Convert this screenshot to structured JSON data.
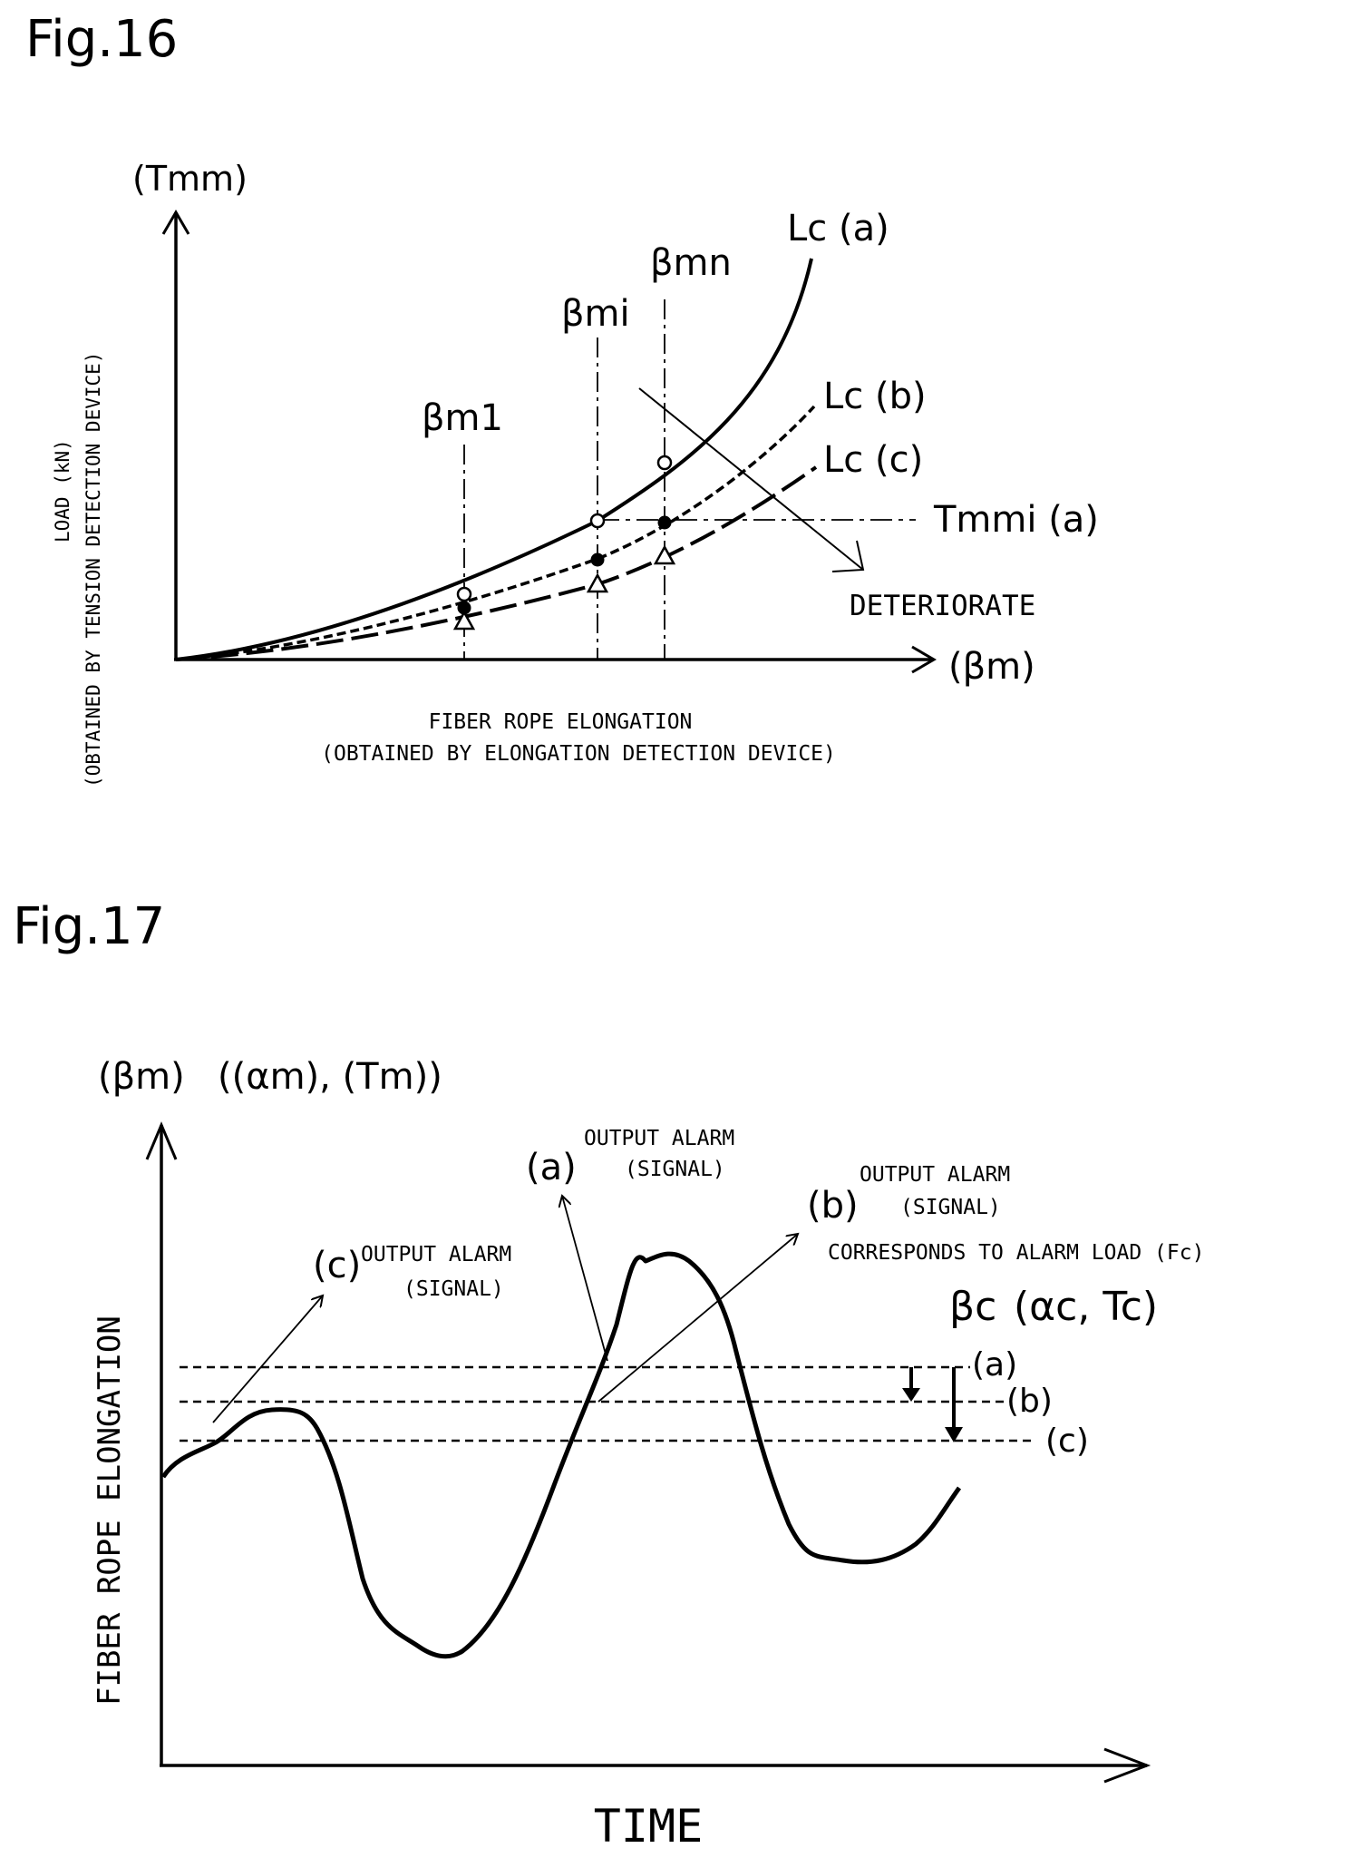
{
  "fig16": {
    "title": "Fig.16",
    "y_unit": "(Tmm)",
    "y_label_line1": "LOAD (kN)",
    "y_label_line2": "(OBTAINED BY TENSION DETECTION DEVICE)",
    "x_unit": "(βm)",
    "x_label_line1": "FIBER ROPE ELONGATION",
    "x_label_line2": "(OBTAINED BY ELONGATION DETECTION DEVICE)",
    "markers": [
      "βm1",
      "βmi",
      "βmn"
    ],
    "curves": [
      "Lc (a)",
      "Lc (b)",
      "Lc (c)"
    ],
    "threshold_label": "Tmmi (a)",
    "arrow_label": "DETERIORATE"
  },
  "fig17": {
    "title": "Fig.17",
    "y_unit_main": "(βm)",
    "y_unit_alt": "((αm), (Tm))",
    "y_label": "FIBER ROPE ELONGATION",
    "x_label": "TIME",
    "alarms": [
      {
        "tag": "(a)",
        "line1": "OUTPUT ALARM",
        "line2": "(SIGNAL)"
      },
      {
        "tag": "(b)",
        "line1": "OUTPUT ALARM",
        "line2": "(SIGNAL)"
      },
      {
        "tag": "(c)",
        "line1": "OUTPUT ALARM",
        "line2": "(SIGNAL)"
      }
    ],
    "corresponds_label": "CORRESPONDS TO ALARM LOAD (Fc)",
    "threshold_main": "βc",
    "threshold_alt": "(αc, Tc)",
    "levels": [
      "(a)",
      "(b)",
      "(c)"
    ]
  }
}
